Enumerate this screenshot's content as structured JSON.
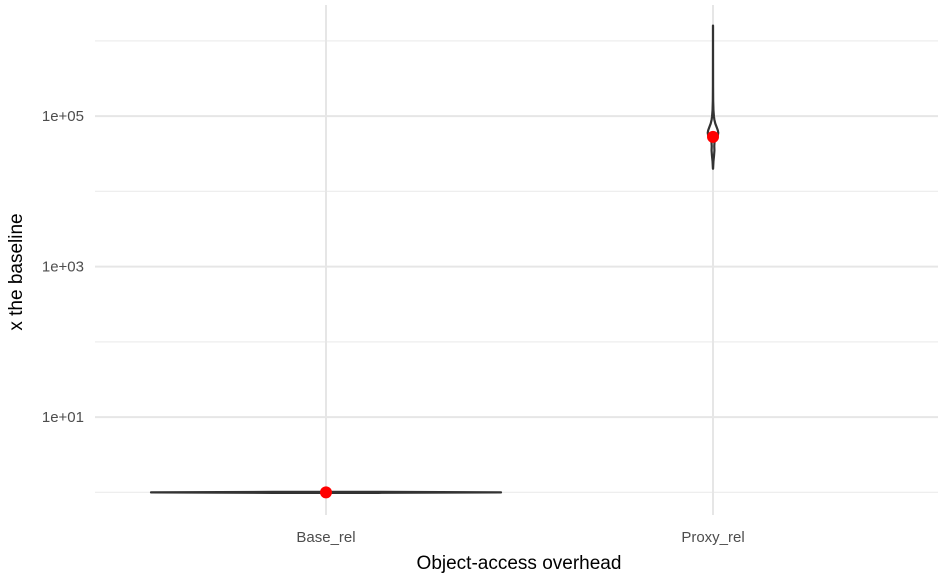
{
  "chart_data": {
    "type": "violin",
    "categories": [
      "Base_rel",
      "Proxy_rel"
    ],
    "xlabel": "Object-access overhead",
    "ylabel": "x the baseline",
    "yscale": "log10",
    "ylim": [
      0.5,
      3000000
    ],
    "yticks": [
      {
        "value": 10,
        "label": "1e+01"
      },
      {
        "value": 1000,
        "label": "1e+03"
      },
      {
        "value": 100000,
        "label": "1e+05"
      }
    ],
    "yminor": [
      1,
      100,
      10000,
      1000000
    ],
    "grid": true,
    "series": [
      {
        "category": "Base_rel",
        "point_mean": 1.0,
        "range": [
          0.98,
          1.02
        ],
        "profile": [
          [
            0.985,
            0.3
          ],
          [
            1.0,
            1.0
          ],
          [
            1.015,
            0.3
          ]
        ]
      },
      {
        "category": "Proxy_rel",
        "point_mean": 53000,
        "range": [
          20000,
          1600000
        ],
        "profile": [
          [
            20000,
            0.005
          ],
          [
            25000,
            0.03
          ],
          [
            30000,
            0.07
          ],
          [
            35000,
            0.095
          ],
          [
            40000,
            0.085
          ],
          [
            45000,
            0.1
          ],
          [
            50000,
            0.2
          ],
          [
            55000,
            0.32
          ],
          [
            60000,
            0.35
          ],
          [
            65000,
            0.32
          ],
          [
            70000,
            0.26
          ],
          [
            80000,
            0.15
          ],
          [
            90000,
            0.09
          ],
          [
            100000,
            0.06
          ],
          [
            120000,
            0.03
          ],
          [
            160000,
            0.012
          ],
          [
            250000,
            0.006
          ],
          [
            500000,
            0.004
          ],
          [
            1000000,
            0.003
          ],
          [
            1600000,
            0.003
          ]
        ]
      }
    ],
    "colors": {
      "point": "#ff0000",
      "outline": "#333333",
      "grid": "#e6e6e6"
    }
  }
}
